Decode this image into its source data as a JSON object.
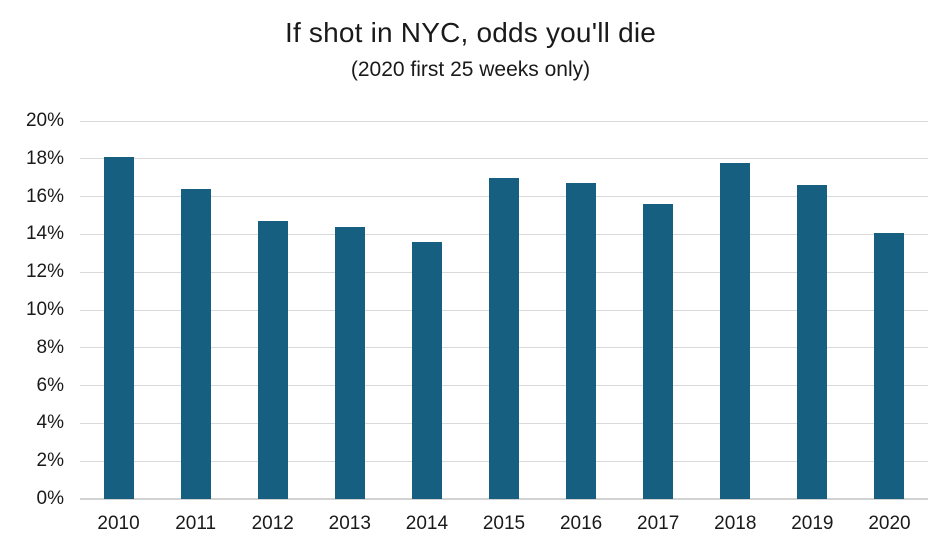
{
  "chart_data": {
    "type": "bar",
    "title": "If shot in NYC, odds you'll die",
    "subtitle": "(2020 first 25 weeks only)",
    "categories": [
      "2010",
      "2011",
      "2012",
      "2013",
      "2014",
      "2015",
      "2016",
      "2017",
      "2018",
      "2019",
      "2020"
    ],
    "values": [
      18.1,
      16.4,
      14.7,
      14.4,
      13.6,
      17.0,
      16.7,
      15.6,
      17.8,
      16.6,
      14.1
    ],
    "value_unit": "%",
    "xlabel": "",
    "ylabel": "",
    "ylim": [
      0,
      20
    ],
    "ytick_step": 2,
    "ytick_labels": [
      "0%",
      "2%",
      "4%",
      "6%",
      "8%",
      "10%",
      "12%",
      "14%",
      "16%",
      "18%",
      "20%"
    ],
    "grid": true,
    "legend_position": "none",
    "colors": {
      "bar": "#165F80",
      "gridline": "#D9D9D9",
      "axis_line": "#D2D2D2",
      "text": "#1a1a1a",
      "background": "#ffffff"
    }
  }
}
